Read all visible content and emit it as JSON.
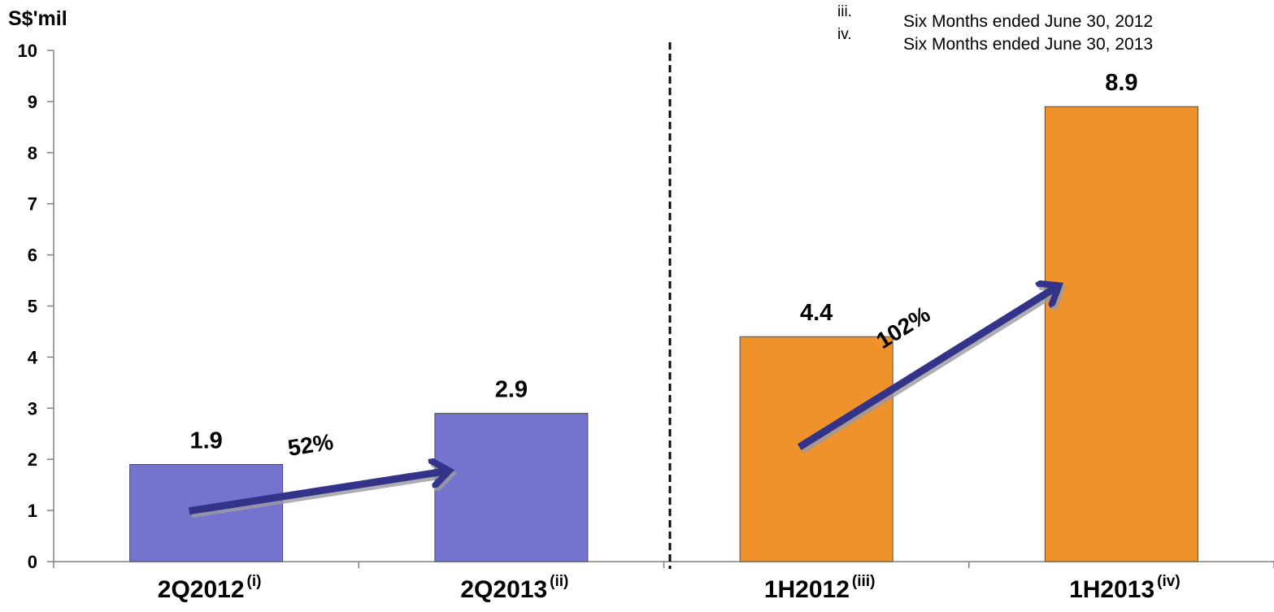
{
  "chart_data": {
    "type": "bar",
    "ylabel": "S$'mil",
    "ylim": [
      0,
      10
    ],
    "yticks": [
      "0",
      "1",
      "2",
      "3",
      "4",
      "5",
      "6",
      "7",
      "8",
      "9",
      "10"
    ],
    "grid": false,
    "categories": [
      {
        "label": "2Q2012",
        "sup": "(i)"
      },
      {
        "label": "2Q2013",
        "sup": "(ii)"
      },
      {
        "label": "1H2012",
        "sup": "(iii)"
      },
      {
        "label": "1H2013",
        "sup": "(iv)"
      }
    ],
    "values": [
      1.9,
      2.9,
      4.4,
      8.9
    ],
    "value_labels": [
      "1.9",
      "2.9",
      "4.4",
      "8.9"
    ],
    "colors": [
      "#7474CF",
      "#7474CF",
      "#F0922B",
      "#F0922B"
    ],
    "growth": [
      {
        "label": "52%",
        "from": 0,
        "to": 1
      },
      {
        "label": "102%",
        "from": 2,
        "to": 3
      }
    ],
    "arrow_color": "#33338A",
    "notes": [
      {
        "num": "iii.",
        "text": "Six Months ended June 30, 2012"
      },
      {
        "num": "iv.",
        "text": "Six Months ended June 30, 2013"
      }
    ]
  }
}
